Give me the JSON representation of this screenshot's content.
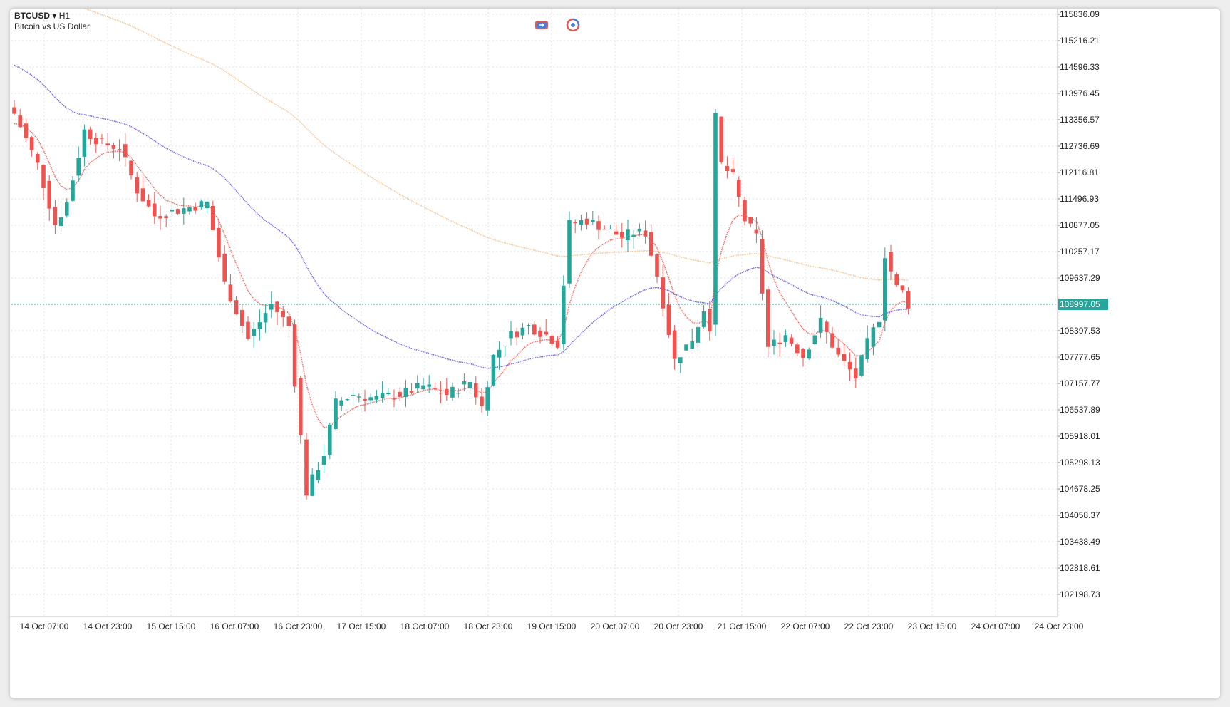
{
  "header": {
    "symbol": "BTCUSD",
    "dropdown_glyph": "▾",
    "timeframe": "H1",
    "description": "Bitcoin vs US Dollar"
  },
  "toolbar": {
    "icons": [
      "ea-switch-icon",
      "one-click-trading-icon"
    ]
  },
  "colors": {
    "bull": "#26a69a",
    "bear": "#ef5350",
    "ma_fast": "#e8675f",
    "ma_mid": "#6b5fd6",
    "ma_slow": "#f2c28f",
    "grid": "#e2e2e2",
    "current_price_line": "#26a69a"
  },
  "chart_data": {
    "type": "candlestick",
    "symbol": "BTCUSD",
    "timeframe": "H1",
    "title": "BTCUSD",
    "subtitle": "Bitcoin vs US Dollar",
    "grid": true,
    "y_ticks": [
      "115836.09",
      "115216.21",
      "114596.33",
      "113976.45",
      "113356.57",
      "112736.69",
      "112116.81",
      "111496.93",
      "110877.05",
      "110257.17",
      "109637.29",
      "108397.53",
      "107777.65",
      "107157.77",
      "106537.89",
      "105918.01",
      "105298.13",
      "104678.25",
      "104058.37",
      "103438.49",
      "102818.61",
      "102198.73"
    ],
    "ylim": [
      101700,
      116000
    ],
    "x_ticks": [
      "14 Oct 07:00",
      "14 Oct 23:00",
      "15 Oct 15:00",
      "16 Oct 07:00",
      "16 Oct 23:00",
      "17 Oct 15:00",
      "18 Oct 07:00",
      "18 Oct 23:00",
      "19 Oct 15:00",
      "20 Oct 07:00",
      "20 Oct 23:00",
      "21 Oct 15:00",
      "22 Oct 07:00",
      "22 Oct 23:00",
      "23 Oct 15:00",
      "24 Oct 07:00",
      "24 Oct 23:00"
    ],
    "current_price": "108997.05",
    "keyframes_close": [
      [
        0,
        113500
      ],
      [
        4,
        112300
      ],
      [
        7,
        110900
      ],
      [
        9,
        111400
      ],
      [
        12,
        113100
      ],
      [
        15,
        112800
      ],
      [
        18,
        112700
      ],
      [
        21,
        111700
      ],
      [
        24,
        111100
      ],
      [
        27,
        111200
      ],
      [
        30,
        111300
      ],
      [
        33,
        111400
      ],
      [
        36,
        109500
      ],
      [
        40,
        108200
      ],
      [
        44,
        109000
      ],
      [
        47,
        108500
      ],
      [
        50,
        104600
      ],
      [
        53,
        105500
      ],
      [
        55,
        106700
      ],
      [
        58,
        106900
      ],
      [
        62,
        106800
      ],
      [
        66,
        106900
      ],
      [
        70,
        107100
      ],
      [
        74,
        106900
      ],
      [
        78,
        107200
      ],
      [
        80,
        106600
      ],
      [
        82,
        107800
      ],
      [
        85,
        108300
      ],
      [
        88,
        108500
      ],
      [
        91,
        108300
      ],
      [
        93,
        108100
      ],
      [
        95,
        110900
      ],
      [
        98,
        111000
      ],
      [
        101,
        110800
      ],
      [
        104,
        110600
      ],
      [
        106,
        110700
      ],
      [
        108,
        110700
      ],
      [
        110,
        109700
      ],
      [
        113,
        107700
      ],
      [
        116,
        108200
      ],
      [
        118,
        108900
      ],
      [
        119,
        108500
      ],
      [
        120,
        113400
      ],
      [
        121,
        112300
      ],
      [
        123,
        112000
      ],
      [
        125,
        111000
      ],
      [
        127,
        110600
      ],
      [
        129,
        108000
      ],
      [
        132,
        108300
      ],
      [
        135,
        107800
      ],
      [
        138,
        108600
      ],
      [
        141,
        107800
      ],
      [
        144,
        107300
      ],
      [
        146,
        108100
      ],
      [
        148,
        108700
      ],
      [
        149,
        110200
      ],
      [
        151,
        109400
      ],
      [
        152,
        109300
      ],
      [
        153,
        109000
      ]
    ],
    "series": [
      {
        "name": "BTCUSD",
        "kind": "candles"
      }
    ]
  }
}
